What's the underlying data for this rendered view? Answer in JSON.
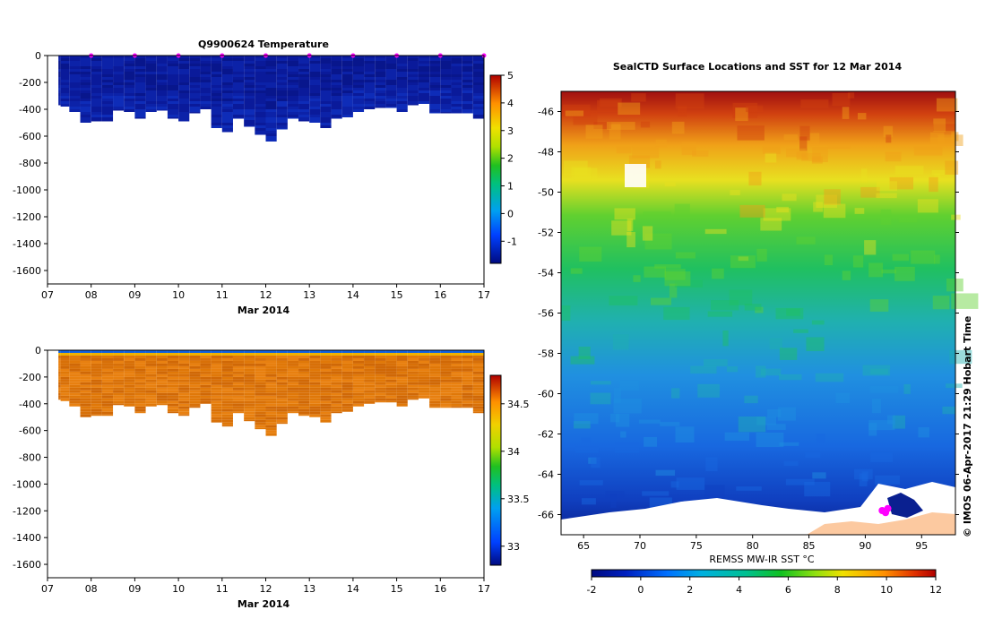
{
  "chart_data": [
    {
      "type": "heatmap",
      "title": "Q9900624  Temperature",
      "xlabel": "Mar 2014",
      "ylabel": "",
      "x_ticks": [
        "07",
        "08",
        "09",
        "10",
        "11",
        "12",
        "13",
        "14",
        "15",
        "16",
        "17"
      ],
      "x_range": [
        7,
        17
      ],
      "y_ticks": [
        "0",
        "-200",
        "-400",
        "-600",
        "-800",
        "-1000",
        "-1200",
        "-1400",
        "-1600"
      ],
      "ylim": [
        -1700,
        0
      ],
      "colorbar": {
        "ticks": [
          "5",
          "4",
          "3",
          "2",
          "1",
          "0",
          "-1"
        ],
        "min": -1.8,
        "max": 5
      },
      "profile_days": [
        7.2,
        7.4,
        7.6,
        7.9,
        8.1,
        8.4,
        8.6,
        8.9,
        9.1,
        9.4,
        9.6,
        9.9,
        10.1,
        10.4,
        10.6,
        10.9,
        11.1,
        11.4,
        11.6,
        11.9,
        12.1,
        12.4,
        12.6,
        12.9,
        13.1,
        13.4,
        13.6,
        13.9,
        14.1,
        14.4,
        14.6,
        14.9,
        15.1,
        15.4,
        15.6,
        15.9,
        16.1,
        16.4,
        16.6,
        16.9
      ],
      "profile_max_depth": [
        370,
        380,
        420,
        500,
        490,
        490,
        410,
        420,
        470,
        420,
        410,
        470,
        490,
        430,
        400,
        540,
        570,
        470,
        530,
        590,
        640,
        550,
        470,
        490,
        500,
        540,
        470,
        460,
        420,
        400,
        390,
        390,
        420,
        370,
        360,
        430,
        430,
        430,
        430,
        470
      ],
      "surface_markers": [
        8,
        9,
        10,
        11,
        12,
        13,
        14,
        15,
        16,
        17
      ]
    },
    {
      "type": "heatmap",
      "title": "",
      "xlabel": "Mar 2014",
      "ylabel": "",
      "x_ticks": [
        "07",
        "08",
        "09",
        "10",
        "11",
        "12",
        "13",
        "14",
        "15",
        "16",
        "17"
      ],
      "x_range": [
        7,
        17
      ],
      "y_ticks": [
        "0",
        "-200",
        "-400",
        "-600",
        "-800",
        "-1000",
        "-1200",
        "-1400",
        "-1600"
      ],
      "ylim": [
        -1700,
        0
      ],
      "colorbar": {
        "ticks": [
          "34.5",
          "34",
          "33.5",
          "33"
        ],
        "min": 32.8,
        "max": 34.8
      }
    },
    {
      "type": "heatmap",
      "title": "SealCTD Surface Locations and SST for 12 Mar 2014",
      "xlabel": "REMSS MW-IR SST °C",
      "x_ticks": [
        "65",
        "70",
        "75",
        "80",
        "85",
        "90",
        "95"
      ],
      "x_range": [
        63,
        98
      ],
      "y_ticks": [
        "-46",
        "-48",
        "-50",
        "-52",
        "-54",
        "-56",
        "-58",
        "-60",
        "-62",
        "-64",
        "-66"
      ],
      "y_range": [
        -67,
        -45
      ],
      "colorbar": {
        "ticks": [
          "-2",
          "0",
          "2",
          "4",
          "6",
          "8",
          "10",
          "12"
        ],
        "min": -2,
        "max": 12
      },
      "seal_locations": [
        [
          91.5,
          -65.8
        ],
        [
          92.0,
          -65.7
        ],
        [
          91.8,
          -65.9
        ]
      ]
    }
  ],
  "credit": "© IMOS 06-Apr-2017 21:29 Hobart Time",
  "colors": {
    "surface_marker": "#ff00ff",
    "land": "#fcc9a0"
  }
}
